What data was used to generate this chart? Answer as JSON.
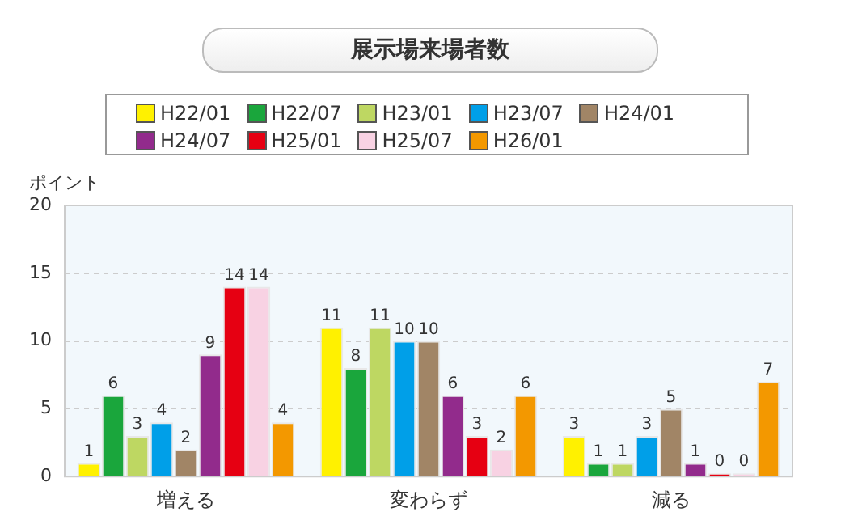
{
  "chart_data": {
    "type": "bar",
    "title": "展示場来場者数",
    "ylabel": "ポイント",
    "categories": [
      "増える",
      "変わらず",
      "減る"
    ],
    "series": [
      {
        "name": "H22/01",
        "color": "#fff100",
        "values": [
          1,
          11,
          3
        ]
      },
      {
        "name": "H22/07",
        "color": "#1aa63c",
        "values": [
          6,
          8,
          1
        ]
      },
      {
        "name": "H23/01",
        "color": "#bed762",
        "values": [
          3,
          11,
          1
        ]
      },
      {
        "name": "H23/07",
        "color": "#009fe8",
        "values": [
          4,
          10,
          3
        ]
      },
      {
        "name": "H24/01",
        "color": "#a18566",
        "values": [
          2,
          10,
          5
        ]
      },
      {
        "name": "H24/07",
        "color": "#922b8c",
        "values": [
          9,
          6,
          1
        ]
      },
      {
        "name": "H25/01",
        "color": "#e60012",
        "values": [
          14,
          3,
          0
        ]
      },
      {
        "name": "H25/07",
        "color": "#f8d2e3",
        "values": [
          14,
          2,
          0
        ]
      },
      {
        "name": "H26/01",
        "color": "#f39800",
        "values": [
          4,
          6,
          7
        ]
      }
    ],
    "ylim": [
      0,
      20
    ],
    "yticks": [
      0,
      5,
      10,
      15,
      20
    ],
    "grid": "y",
    "legend": "top",
    "data_labels": true
  }
}
